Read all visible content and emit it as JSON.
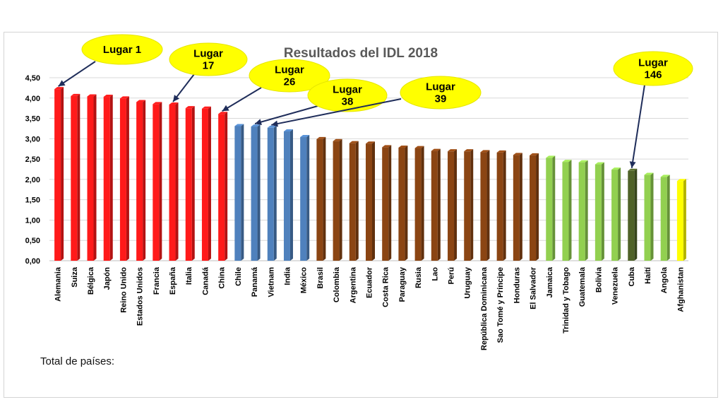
{
  "chart_data": {
    "type": "bar",
    "title": "Resultados del IDL 2018",
    "xlabel": "",
    "ylabel": "",
    "ylim": [
      0,
      4.5
    ],
    "yticks": [
      "0,00",
      "0,50",
      "1,00",
      "1,50",
      "2,00",
      "2,50",
      "3,00",
      "3,50",
      "4,00",
      "4,50"
    ],
    "grid": true,
    "categories": [
      "Alemania",
      "Suiza",
      "Bélgica",
      "Japón",
      "Reino Unido",
      "Estados Unidos",
      "Francia",
      "España",
      "Italia",
      "Canadá",
      "China",
      "Chile",
      "Panamá",
      "Vietnam",
      "India",
      "México",
      "Brasil",
      "Colombia",
      "Argentina",
      "Ecuador",
      "Costa Rica",
      "Paraguay",
      "Rusia",
      "Lao",
      "Perú",
      "Uruguay",
      "República Dominicana",
      "Sao Tomé y Principe",
      "Honduras",
      "El Salvador",
      "Jamaica",
      "Trinidad y Tobago",
      "Guatemala",
      "Bolivia",
      "Venezuela",
      "Cuba",
      "Haití",
      "Angola",
      "Afghanistan"
    ],
    "values": [
      4.22,
      4.05,
      4.04,
      4.03,
      3.99,
      3.9,
      3.85,
      3.84,
      3.75,
      3.74,
      3.61,
      3.31,
      3.3,
      3.27,
      3.18,
      3.04,
      2.99,
      2.94,
      2.89,
      2.88,
      2.79,
      2.78,
      2.77,
      2.7,
      2.69,
      2.69,
      2.67,
      2.66,
      2.6,
      2.59,
      2.53,
      2.43,
      2.42,
      2.37,
      2.24,
      2.21,
      2.11,
      2.06,
      1.96
    ],
    "bar_colors": [
      "#ff1a1a",
      "#ff1a1a",
      "#ff1a1a",
      "#ff1a1a",
      "#ff1a1a",
      "#ff1a1a",
      "#ff1a1a",
      "#ff1a1a",
      "#ff1a1a",
      "#ff1a1a",
      "#ff1a1a",
      "#4f81bd",
      "#4f81bd",
      "#4f81bd",
      "#4f81bd",
      "#4f81bd",
      "#8b4513",
      "#8b4513",
      "#8b4513",
      "#8b4513",
      "#8b4513",
      "#8b4513",
      "#8b4513",
      "#8b4513",
      "#8b4513",
      "#8b4513",
      "#8b4513",
      "#8b4513",
      "#8b4513",
      "#8b4513",
      "#92d050",
      "#92d050",
      "#92d050",
      "#92d050",
      "#92d050",
      "#4f6228",
      "#92d050",
      "#92d050",
      "#ffff00"
    ],
    "annotations": [
      {
        "label": "Lugar 1",
        "target_index": 0
      },
      {
        "label": "Lugar\n17",
        "target_index": 7
      },
      {
        "label": "Lugar\n26",
        "target_index": 10
      },
      {
        "label": "Lugar\n38",
        "target_index": 12
      },
      {
        "label": "Lugar\n39",
        "target_index": 13
      },
      {
        "label": "Lugar\n146",
        "target_index": 35
      }
    ]
  },
  "footer": {
    "total_label": "Total de países:"
  }
}
